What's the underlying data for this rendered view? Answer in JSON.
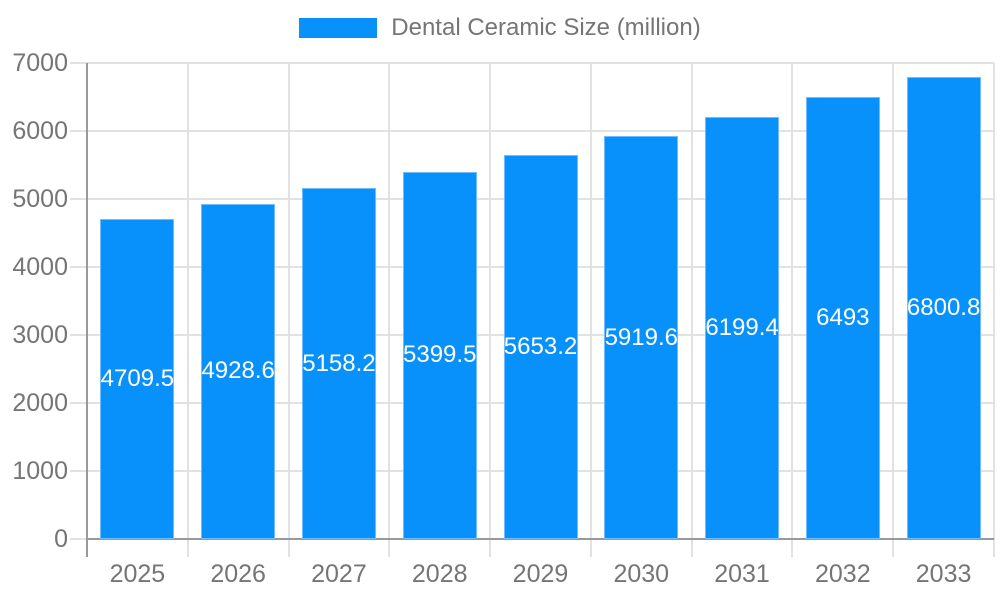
{
  "chart_data": {
    "type": "bar",
    "title": "Dental Ceramic Size (million)",
    "categories": [
      "2025",
      "2026",
      "2027",
      "2028",
      "2029",
      "2030",
      "2031",
      "2032",
      "2033"
    ],
    "series": [
      {
        "name": "Dental Ceramic Size (million)",
        "values": [
          4709.5,
          4928.6,
          5158.2,
          5399.5,
          5653.2,
          5919.6,
          6199.4,
          6493,
          6800.8
        ],
        "value_labels": [
          "4709.5",
          "4928.6",
          "5158.2",
          "5399.5",
          "5653.2",
          "5919.6",
          "6199.4",
          "6493",
          "6800.8"
        ]
      }
    ],
    "xlabel": "",
    "ylabel": "",
    "ylim": [
      0,
      7000
    ],
    "ytick_step": 1000,
    "ytick_labels": [
      "0",
      "1000",
      "2000",
      "3000",
      "4000",
      "5000",
      "6000",
      "7000"
    ],
    "grid": true,
    "legend_position": "top-center",
    "colors": {
      "bar": "#0991FB",
      "bar_label_text": "#FFFFFF",
      "axis_line": "#999999",
      "gridline": "#E2E2E2",
      "tick_label_text": "#757575",
      "legend_text": "#757575",
      "background": "#FFFFFF"
    }
  }
}
